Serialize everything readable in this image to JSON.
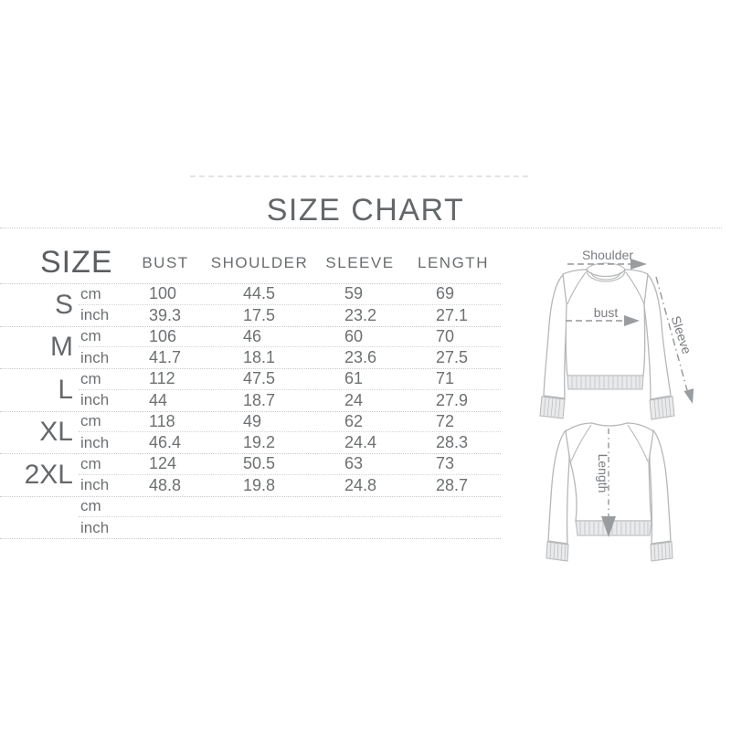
{
  "title": "SIZE CHART",
  "table": {
    "size_header": "SIZE",
    "columns": [
      "BUST",
      "SHOULDER",
      "SLEEVE",
      "LENGTH"
    ],
    "unit_labels": {
      "cm": "cm",
      "inch": "inch"
    },
    "rows": [
      {
        "size": "S",
        "cm": [
          "100",
          "44.5",
          "59",
          "69"
        ],
        "inch": [
          "39.3",
          "17.5",
          "23.2",
          "27.1"
        ]
      },
      {
        "size": "M",
        "cm": [
          "106",
          "46",
          "60",
          "70"
        ],
        "inch": [
          "41.7",
          "18.1",
          "23.6",
          "27.5"
        ]
      },
      {
        "size": "L",
        "cm": [
          "112",
          "47.5",
          "61",
          "71"
        ],
        "inch": [
          "44",
          "18.7",
          "24",
          "27.9"
        ]
      },
      {
        "size": "XL",
        "cm": [
          "118",
          "49",
          "62",
          "72"
        ],
        "inch": [
          "46.4",
          "19.2",
          "24.4",
          "28.3"
        ]
      },
      {
        "size": "2XL",
        "cm": [
          "124",
          "50.5",
          "63",
          "73"
        ],
        "inch": [
          "48.8",
          "19.8",
          "24.8",
          "28.7"
        ]
      },
      {
        "size": "",
        "cm": [
          "",
          "",
          "",
          ""
        ],
        "inch": [
          "",
          "",
          "",
          ""
        ]
      }
    ]
  },
  "diagram": {
    "front_labels": {
      "shoulder": "Shoulder",
      "bust": "bust",
      "sleeve": "Sleeve"
    },
    "back_labels": {
      "length": "Length"
    }
  },
  "colors": {
    "text_gray": "#6a6d6f",
    "line_gray": "#c7c9ca",
    "sketch_gray": "#b5b7b9",
    "background": "#ffffff"
  }
}
